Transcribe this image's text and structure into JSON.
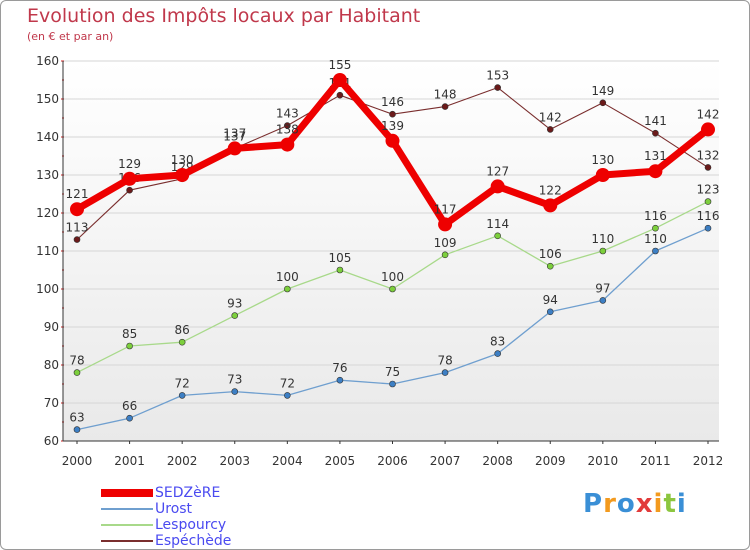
{
  "title": "Evolution des Impôts locaux par Habitant",
  "subtitle": "(en € et par an)",
  "logo": {
    "letters": [
      "P",
      "r",
      "o",
      "x",
      "i",
      "t",
      "i"
    ],
    "colors": [
      "#3a8fd6",
      "#f39a1e",
      "#3a8fd6",
      "#e23b3b",
      "#f39a1e",
      "#8cc63f",
      "#3a8fd6"
    ]
  },
  "chart_data": {
    "type": "line",
    "title": "Evolution des Impôts locaux par Habitant",
    "subtitle": "(en € et par an)",
    "xlabel": "",
    "ylabel": "",
    "x": [
      "2000",
      "2001",
      "2002",
      "2003",
      "2004",
      "2005",
      "2006",
      "2007",
      "2008",
      "2009",
      "2010",
      "2011",
      "2012"
    ],
    "ylim": [
      60,
      160
    ],
    "yticks": [
      60,
      70,
      80,
      90,
      100,
      110,
      120,
      130,
      140,
      150,
      160
    ],
    "grid": true,
    "legend_position": "bottom-left",
    "series": [
      {
        "name": "SEDZèRE",
        "color": "#ee0000",
        "width": 7,
        "marker": 7,
        "values": [
          121,
          129,
          130,
          137,
          138,
          155,
          139,
          117,
          127,
          122,
          130,
          131,
          142
        ]
      },
      {
        "name": "Urost",
        "color": "#6f9fcf",
        "marker_fill": "#3d7fc4",
        "width": 1.3,
        "marker": 3,
        "values": [
          63,
          66,
          72,
          73,
          72,
          76,
          75,
          78,
          83,
          94,
          97,
          110,
          116
        ]
      },
      {
        "name": "Lespourcy",
        "color": "#a8d98a",
        "marker_fill": "#7ccf3c",
        "width": 1.3,
        "marker": 3,
        "values": [
          78,
          85,
          86,
          93,
          100,
          105,
          100,
          109,
          114,
          106,
          110,
          116,
          123
        ]
      },
      {
        "name": "Espéchède",
        "color": "#7a2e2e",
        "marker_fill": "#6b1a1a",
        "width": 1.1,
        "marker": 3,
        "values": [
          113,
          126,
          129,
          137,
          143,
          151,
          146,
          148,
          153,
          142,
          149,
          141,
          132
        ]
      }
    ]
  }
}
